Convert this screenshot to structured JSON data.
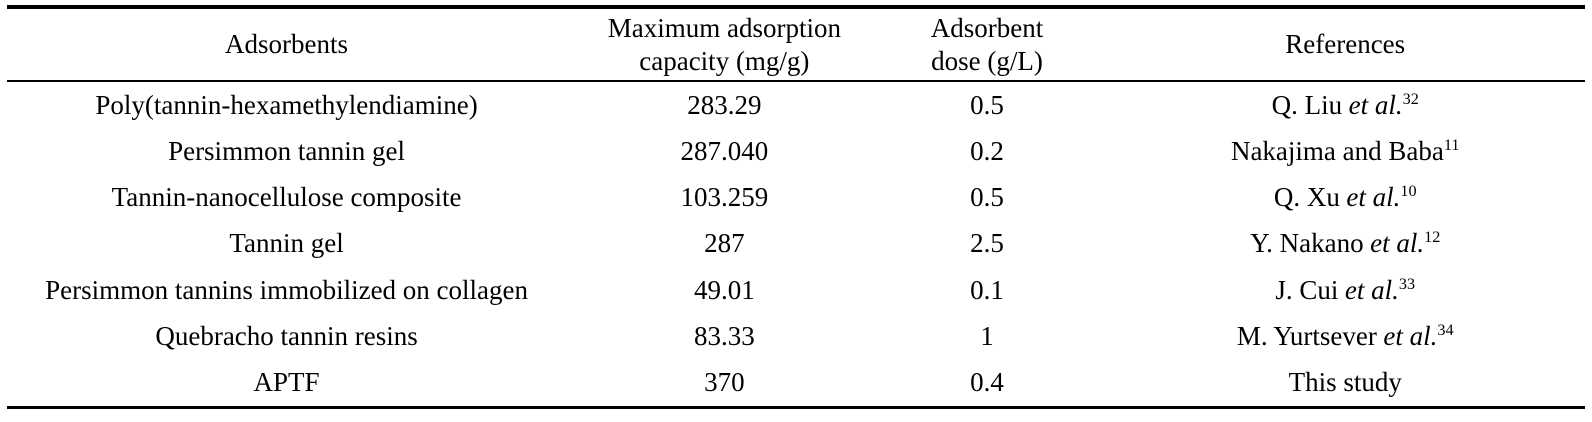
{
  "table": {
    "header": {
      "adsorbents": "Adsorbents",
      "capacity": "Maximum adsorption capacity (mg/g)",
      "dose": "Adsorbent dose (g/L)",
      "references": "References"
    },
    "rows": [
      {
        "adsorbent": "Poly(tannin-hexamethylendiamine)",
        "capacity": "283.29",
        "dose": "0.5",
        "ref_text": "Q. Liu",
        "ref_italic": "et al.",
        "ref_sup": "32"
      },
      {
        "adsorbent": "Persimmon tannin gel",
        "capacity": "287.040",
        "dose": "0.2",
        "ref_text": "Nakajima and Baba",
        "ref_italic": "",
        "ref_sup": "11"
      },
      {
        "adsorbent": "Tannin-nanocellulose composite",
        "capacity": "103.259",
        "dose": "0.5",
        "ref_text": "Q. Xu",
        "ref_italic": "et al.",
        "ref_sup": "10"
      },
      {
        "adsorbent": "Tannin gel",
        "capacity": "287",
        "dose": "2.5",
        "ref_text": "Y. Nakano",
        "ref_italic": "et al.",
        "ref_sup": "12"
      },
      {
        "adsorbent": "Persimmon tannins immobilized on collagen",
        "capacity": "49.01",
        "dose": "0.1",
        "ref_text": "J. Cui",
        "ref_italic": "et al.",
        "ref_sup": "33"
      },
      {
        "adsorbent": "Quebracho tannin resins",
        "capacity": "83.33",
        "dose": "1",
        "ref_text": "M. Yurtsever",
        "ref_italic": "et al.",
        "ref_sup": "34"
      },
      {
        "adsorbent": "APTF",
        "capacity": "370",
        "dose": "0.4",
        "ref_text": "This study",
        "ref_italic": "",
        "ref_sup": ""
      }
    ]
  },
  "colors": {
    "text": "#000000",
    "background": "#ffffff",
    "rule": "#000000"
  }
}
